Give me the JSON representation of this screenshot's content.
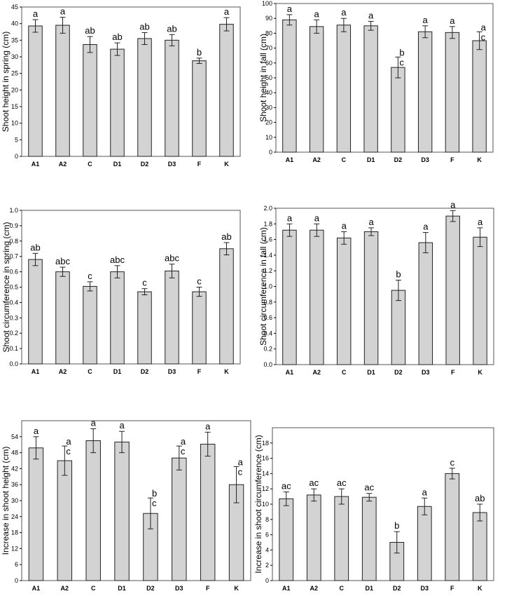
{
  "colors": {
    "bar_fill": "#d3d3d3",
    "bar_stroke": "#222222",
    "axis": "#000000",
    "frame": "#555555"
  },
  "chart_data": [
    {
      "type": "bar",
      "ylabel": "Shoot height in spring (cm)",
      "categories": [
        "A1",
        "A2",
        "C",
        "D1",
        "D2",
        "D3",
        "F",
        "K"
      ],
      "values": [
        39.3,
        39.5,
        33.7,
        32.3,
        35.5,
        35.0,
        28.8,
        39.8
      ],
      "error": [
        1.9,
        2.4,
        2.4,
        1.9,
        1.8,
        1.7,
        0.8,
        2.0
      ],
      "letters": [
        "a",
        "a",
        "ab",
        "ab",
        "ab",
        "ab",
        "b",
        "a"
      ],
      "ylim": [
        0,
        45
      ],
      "yticks": [
        "0",
        "5",
        "10",
        "15",
        "20",
        "25",
        "30",
        "35",
        "40",
        "45"
      ],
      "grid": false
    },
    {
      "type": "bar",
      "ylabel": "Shoot height in fall (cm)",
      "categories": [
        "A1",
        "A2",
        "C",
        "D1",
        "D2",
        "D3",
        "F",
        "K"
      ],
      "values": [
        89,
        84.5,
        85.5,
        85,
        57,
        81,
        80.5,
        75
      ],
      "error": [
        3.5,
        4.5,
        4.5,
        3,
        7,
        4,
        4,
        6
      ],
      "letters": [
        "a",
        "a",
        "a",
        "a",
        "b\nc",
        "a",
        "a",
        "a\nc"
      ],
      "ylim": [
        0,
        100
      ],
      "yticks": [
        "0",
        "10",
        "20",
        "30",
        "40",
        "50",
        "60",
        "70",
        "80",
        "90",
        "100"
      ],
      "grid": false
    },
    {
      "type": "bar",
      "ylabel": "Shoot circumference in spring (cm)",
      "categories": [
        "A1",
        "A2",
        "C",
        "D1",
        "D2",
        "D3",
        "F",
        "K"
      ],
      "values": [
        0.68,
        0.6,
        0.505,
        0.6,
        0.47,
        0.605,
        0.47,
        0.75
      ],
      "error": [
        0.04,
        0.03,
        0.03,
        0.04,
        0.02,
        0.045,
        0.03,
        0.04
      ],
      "letters": [
        "ab",
        "abc",
        "c",
        "abc",
        "c",
        "abc",
        "c",
        "ab"
      ],
      "ylim": [
        0,
        1.0
      ],
      "yticks": [
        "0.0",
        "0.1",
        "0.2",
        "0.3",
        "0.4",
        "0.5",
        "0.6",
        "0.7",
        "0.8",
        "0.9",
        "1.0"
      ],
      "grid": false
    },
    {
      "type": "bar",
      "ylabel": "Shoot circumference in fall (cm)",
      "categories": [
        "A1",
        "A2",
        "C",
        "D1",
        "D2",
        "D3",
        "F",
        "K"
      ],
      "values": [
        1.72,
        1.72,
        1.62,
        1.7,
        0.95,
        1.56,
        1.9,
        1.63
      ],
      "error": [
        0.08,
        0.08,
        0.08,
        0.05,
        0.13,
        0.13,
        0.07,
        0.12
      ],
      "letters": [
        "a",
        "a",
        "a",
        "a",
        "b",
        "a",
        "a",
        "a"
      ],
      "ylim": [
        0,
        2.0
      ],
      "yticks": [
        "0.0",
        "0.2",
        "0.4",
        "0.6",
        "0.8",
        "1.0",
        "1.2",
        "1.4",
        "1.6",
        "1.8",
        "2.0"
      ],
      "grid": false
    },
    {
      "type": "bar",
      "ylabel": "Increase in shoot height (cm)",
      "categories": [
        "A1",
        "A2",
        "C",
        "D1",
        "D2",
        "D3",
        "F",
        "K"
      ],
      "values": [
        49.8,
        45,
        52.5,
        52,
        25.2,
        46,
        51.2,
        36
      ],
      "error": [
        4.2,
        5.5,
        4.5,
        4,
        5.8,
        4.5,
        4.5,
        6.8
      ],
      "letters": [
        "a",
        "a\nc",
        "a",
        "a",
        "b\nc",
        "a\nc",
        "a",
        "a\nc"
      ],
      "ylim": [
        0,
        60
      ],
      "yticks": [
        "0",
        "6",
        "12",
        "18",
        "24",
        "30",
        "36",
        "42",
        "48",
        "54"
      ],
      "grid": false
    },
    {
      "type": "bar",
      "ylabel": "Increase in shoot circumference (cm)",
      "categories": [
        "A1",
        "A2",
        "C",
        "D1",
        "D2",
        "D3",
        "F",
        "K"
      ],
      "values": [
        10.7,
        11.2,
        11.0,
        10.9,
        5.0,
        9.7,
        14.0,
        8.9
      ],
      "error": [
        0.9,
        0.8,
        1.0,
        0.5,
        1.4,
        1.1,
        0.7,
        1.1
      ],
      "letters": [
        "ac",
        "ac",
        "ac",
        "ac",
        "b",
        "a",
        "c",
        "ab"
      ],
      "ylim": [
        0,
        20
      ],
      "yticks": [
        "0",
        "2",
        "4",
        "6",
        "8",
        "10",
        "12",
        "14",
        "16",
        "18"
      ],
      "grid": false
    }
  ]
}
